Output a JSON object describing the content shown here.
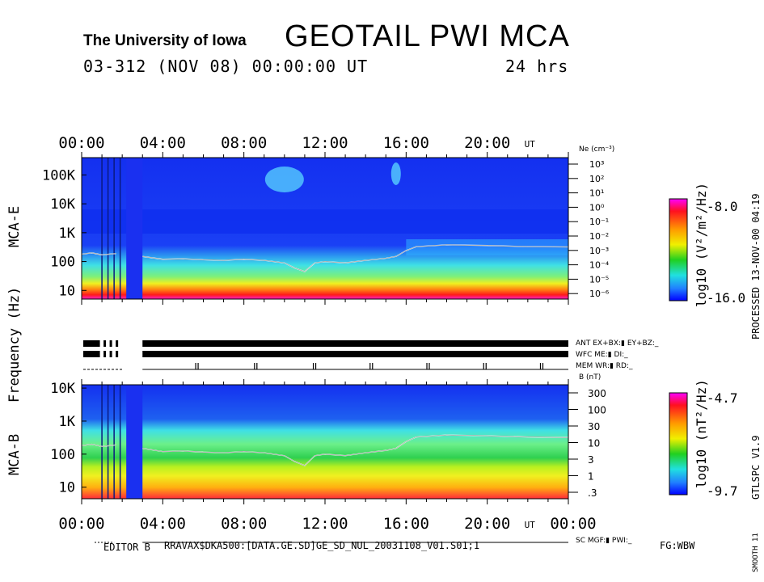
{
  "header": {
    "institution": "The University of Iowa",
    "title": "GEOTAIL PWI MCA",
    "date_line": "03-312 (NOV 08) 00:00:00 UT",
    "duration": "24 hrs"
  },
  "colors": {
    "background": "#ffffff",
    "ink": "#000000",
    "colorbar_top": "#ff00ff",
    "colorbar_bottom": "#0000ff"
  },
  "chart_data": [
    {
      "type": "heatmap",
      "name": "MCA-E",
      "panel_label": "MCA-E",
      "ylabel": "Frequency (Hz)",
      "y_scale": "log",
      "y_ticks": [
        "10",
        "100",
        "1K",
        "10K",
        "100K"
      ],
      "x_ticks": [
        "00:00",
        "04:00",
        "08:00",
        "12:00",
        "16:00",
        "20:00"
      ],
      "x_unit": "UT",
      "xlim": [
        "00:00",
        "24:00"
      ],
      "right_axis_label": "Ne (cm⁻³)",
      "right_axis_ticks": [
        "10³",
        "10²",
        "10¹",
        "10⁰",
        "10⁻¹",
        "10⁻²",
        "10⁻³",
        "10⁻⁴",
        "10⁻⁵",
        "10⁻⁶"
      ],
      "colorbar_label": "log10 (V²/m²/Hz)",
      "colorbar_max": "-8.0",
      "colorbar_min": "-16.0",
      "cutoff_line_hours": [
        0,
        0.5,
        1.0,
        1.7,
        3.0,
        4.0,
        5.0,
        6.0,
        7.0,
        8.0,
        9.0,
        10.0,
        10.5,
        11.0,
        11.5,
        12.0,
        13.0,
        14.0,
        15.0,
        15.5,
        16.0,
        16.5,
        18.0,
        20.0,
        22.0,
        24.0
      ],
      "cutoff_line_hz": [
        180,
        200,
        170,
        190,
        150,
        120,
        125,
        115,
        110,
        120,
        110,
        90,
        60,
        45,
        90,
        100,
        90,
        110,
        130,
        150,
        240,
        330,
        380,
        360,
        330,
        320
      ]
    },
    {
      "type": "heatmap",
      "name": "MCA-B",
      "panel_label": "MCA-B",
      "y_scale": "log",
      "y_ticks": [
        "10",
        "100",
        "1K",
        "10K"
      ],
      "x_ticks": [
        "00:00",
        "04:00",
        "08:00",
        "12:00",
        "16:00",
        "20:00",
        "00:00"
      ],
      "x_unit": "UT",
      "xlim": [
        "00:00",
        "24:00"
      ],
      "right_axis_label": "B (nT)",
      "right_axis_ticks": [
        "300",
        "100",
        "30",
        "10",
        "3",
        "1",
        ".3"
      ],
      "colorbar_label": "log10 (nT²/Hz)",
      "colorbar_max": "-4.7",
      "colorbar_min": "-9.7",
      "cutoff_line_hours": [
        0,
        0.5,
        1.0,
        1.7,
        3.0,
        4.0,
        5.0,
        6.0,
        7.0,
        8.0,
        9.0,
        10.0,
        10.5,
        11.0,
        11.5,
        12.0,
        13.0,
        14.0,
        15.0,
        15.5,
        16.0,
        16.5,
        18.0,
        20.0,
        22.0,
        24.0
      ],
      "cutoff_line_hz": [
        180,
        200,
        170,
        190,
        150,
        120,
        125,
        115,
        110,
        120,
        110,
        90,
        60,
        45,
        90,
        100,
        90,
        110,
        130,
        150,
        240,
        330,
        380,
        360,
        330,
        320
      ]
    }
  ],
  "shared_axis": {
    "frequency_label": "Frequency (Hz)"
  },
  "status_bars": {
    "ant_label": "ANT EX+BX:▮ EY+BZ:_",
    "wfc_label": "WFC ME:▮    DI:_",
    "mem_label": "MEM WR:▮    RD:_",
    "mgf_label": "SC MGF:▮    PWI:_",
    "data_gap_hours": [
      1.0,
      1.3,
      1.6,
      1.9,
      2.2,
      2.6,
      3.0
    ],
    "mem_marks_hours": [
      5.6,
      8.5,
      11.4,
      14.2,
      17.0,
      19.8,
      22.6
    ]
  },
  "footer": {
    "editor": "EDITOR B",
    "file_path": "RRAVAX$DKA500:[DATA.GE.SD]GE_SD_NUL_20031108_V01.S01;1",
    "fg": "FG:WBW"
  },
  "side": {
    "processed": "PROCESSED 13-NOV-00 04:19",
    "version": "GTLSPC V1.9",
    "smooth": "SMOOTH 11"
  }
}
